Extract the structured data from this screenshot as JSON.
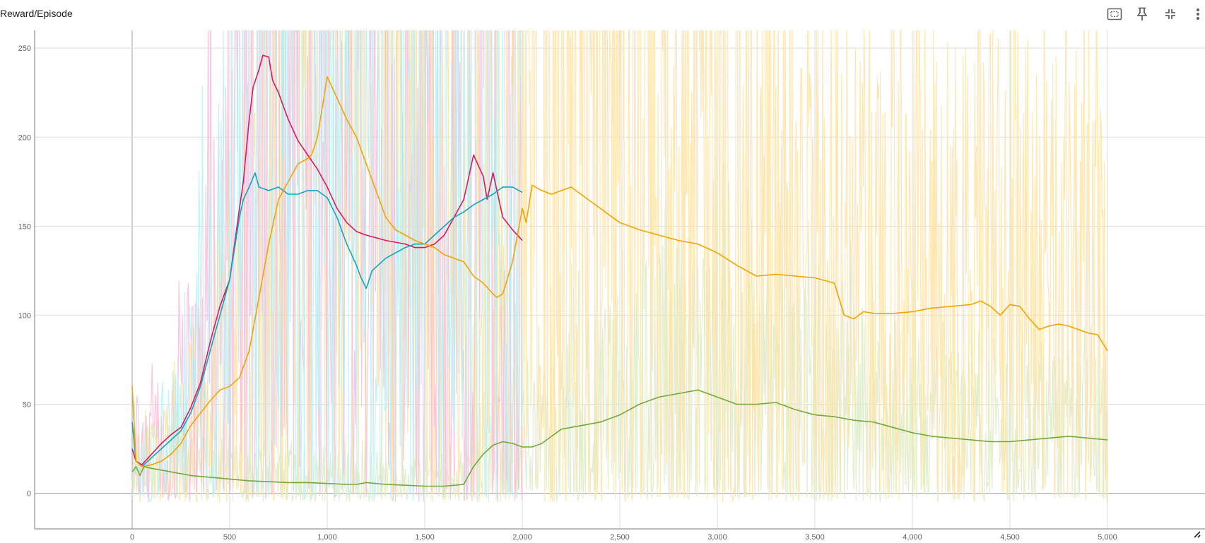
{
  "card": {
    "title": "Reward/Episode"
  },
  "toolbar": [
    {
      "name": "fit-domain-button",
      "icon": "fit-screen-icon"
    },
    {
      "name": "pin-button",
      "icon": "pin-icon"
    },
    {
      "name": "collapse-button",
      "icon": "collapse-icon"
    },
    {
      "name": "more-options-button",
      "icon": "more-vert-icon"
    }
  ],
  "colors": {
    "magenta": "#d81b60",
    "cyan": "#12a4c2",
    "orange": "#f5a300",
    "green": "#72a93b",
    "magenta_raw": "#f8bbd9",
    "cyan_raw": "#b7eef6",
    "orange_raw": "#ffe3a6",
    "green_raw": "#dcebc8",
    "grid": "#dddddd"
  },
  "chart_data": {
    "type": "line",
    "title": "Reward/Episode",
    "xlabel": "",
    "ylabel": "",
    "xlim": [
      -500,
      5500
    ],
    "ylim": [
      -20,
      260
    ],
    "x_ticks": [
      0,
      500,
      1000,
      1500,
      2000,
      2500,
      3000,
      3500,
      4000,
      4500,
      5000
    ],
    "x_tick_labels": [
      "0",
      "500",
      "1,000",
      "1,500",
      "2,000",
      "2,500",
      "3,000",
      "3,500",
      "4,000",
      "4,500",
      "5,000"
    ],
    "y_ticks": [
      0,
      50,
      100,
      150,
      200,
      250
    ],
    "y_tick_labels": [
      "0",
      "50",
      "100",
      "150",
      "200",
      "250"
    ],
    "grid": true,
    "legend": "none",
    "series": [
      {
        "color_key": "magenta",
        "x": [
          0,
          20,
          50,
          100,
          150,
          200,
          250,
          300,
          350,
          400,
          450,
          500,
          550,
          570,
          600,
          620,
          650,
          670,
          700,
          720,
          750,
          800,
          850,
          900,
          950,
          1000,
          1050,
          1100,
          1150,
          1200,
          1300,
          1400,
          1450,
          1500,
          1550,
          1600,
          1650,
          1700,
          1730,
          1750,
          1800,
          1820,
          1850,
          1900,
          1950,
          2000
        ],
        "y": [
          25,
          18,
          16,
          22,
          28,
          33,
          37,
          48,
          62,
          85,
          105,
          120,
          160,
          175,
          210,
          228,
          238,
          246,
          245,
          232,
          225,
          210,
          198,
          190,
          182,
          172,
          160,
          152,
          147,
          145,
          142,
          140,
          138,
          138,
          140,
          145,
          155,
          165,
          180,
          190,
          178,
          165,
          180,
          155,
          148,
          142
        ]
      },
      {
        "color_key": "cyan",
        "x": [
          0,
          20,
          50,
          100,
          150,
          200,
          250,
          300,
          350,
          400,
          450,
          500,
          550,
          570,
          600,
          630,
          650,
          700,
          750,
          800,
          850,
          900,
          950,
          1000,
          1050,
          1100,
          1150,
          1170,
          1200,
          1230,
          1300,
          1400,
          1450,
          1500,
          1550,
          1600,
          1650,
          1700,
          1750,
          1800,
          1850,
          1900,
          1950,
          2000
        ],
        "y": [
          40,
          18,
          15,
          20,
          25,
          30,
          35,
          45,
          60,
          80,
          100,
          120,
          155,
          165,
          172,
          180,
          172,
          170,
          172,
          168,
          168,
          170,
          170,
          166,
          155,
          140,
          128,
          122,
          115,
          125,
          132,
          138,
          140,
          140,
          145,
          150,
          155,
          158,
          162,
          165,
          168,
          172,
          172,
          169
        ]
      },
      {
        "color_key": "orange",
        "x": [
          0,
          20,
          50,
          100,
          150,
          200,
          250,
          300,
          350,
          400,
          450,
          500,
          550,
          600,
          650,
          700,
          750,
          800,
          850,
          900,
          920,
          950,
          1000,
          1050,
          1100,
          1150,
          1200,
          1250,
          1300,
          1350,
          1400,
          1450,
          1500,
          1550,
          1600,
          1650,
          1700,
          1750,
          1800,
          1850,
          1870,
          1900,
          1950,
          2000,
          2020,
          2050,
          2100,
          2150,
          2200,
          2250,
          2300,
          2400,
          2500,
          2600,
          2700,
          2800,
          2900,
          3000,
          3100,
          3200,
          3300,
          3400,
          3500,
          3600,
          3650,
          3700,
          3750,
          3800,
          3900,
          4000,
          4100,
          4200,
          4300,
          4350,
          4400,
          4450,
          4500,
          4550,
          4600,
          4650,
          4700,
          4750,
          4800,
          4850,
          4900,
          4950,
          5000
        ],
        "y": [
          60,
          18,
          15,
          16,
          18,
          22,
          28,
          38,
          45,
          52,
          58,
          60,
          65,
          80,
          110,
          140,
          165,
          175,
          185,
          188,
          190,
          200,
          234,
          222,
          210,
          200,
          185,
          170,
          155,
          148,
          145,
          142,
          140,
          138,
          134,
          132,
          130,
          122,
          118,
          112,
          110,
          112,
          130,
          160,
          152,
          173,
          170,
          168,
          170,
          172,
          168,
          160,
          152,
          148,
          145,
          142,
          140,
          135,
          128,
          122,
          123,
          122,
          121,
          118,
          100,
          98,
          102,
          101,
          101,
          102,
          104,
          105,
          106,
          108,
          105,
          100,
          106,
          105,
          98,
          92,
          94,
          95,
          94,
          92,
          90,
          89,
          80
        ]
      },
      {
        "color_key": "green",
        "x": [
          0,
          20,
          40,
          60,
          100,
          200,
          300,
          400,
          500,
          600,
          700,
          800,
          900,
          1000,
          1100,
          1150,
          1200,
          1300,
          1400,
          1500,
          1600,
          1700,
          1750,
          1800,
          1850,
          1900,
          1950,
          2000,
          2050,
          2100,
          2150,
          2200,
          2300,
          2400,
          2500,
          2600,
          2700,
          2800,
          2900,
          3000,
          3100,
          3200,
          3300,
          3400,
          3500,
          3600,
          3700,
          3800,
          3900,
          4000,
          4100,
          4200,
          4300,
          4400,
          4500,
          4600,
          4700,
          4800,
          4900,
          5000
        ],
        "y": [
          12,
          15,
          10,
          15,
          14,
          12,
          10,
          9,
          8,
          7,
          6.5,
          6,
          6,
          5.5,
          5,
          5,
          6,
          5,
          4.5,
          4,
          4,
          5,
          15,
          22,
          27,
          29,
          28,
          26,
          26,
          28,
          32,
          36,
          38,
          40,
          44,
          50,
          54,
          56,
          58,
          54,
          50,
          50,
          51,
          47,
          44,
          43,
          41,
          40,
          37,
          34,
          32,
          31,
          30,
          29,
          29,
          30,
          31,
          32,
          31,
          30
        ]
      }
    ]
  }
}
